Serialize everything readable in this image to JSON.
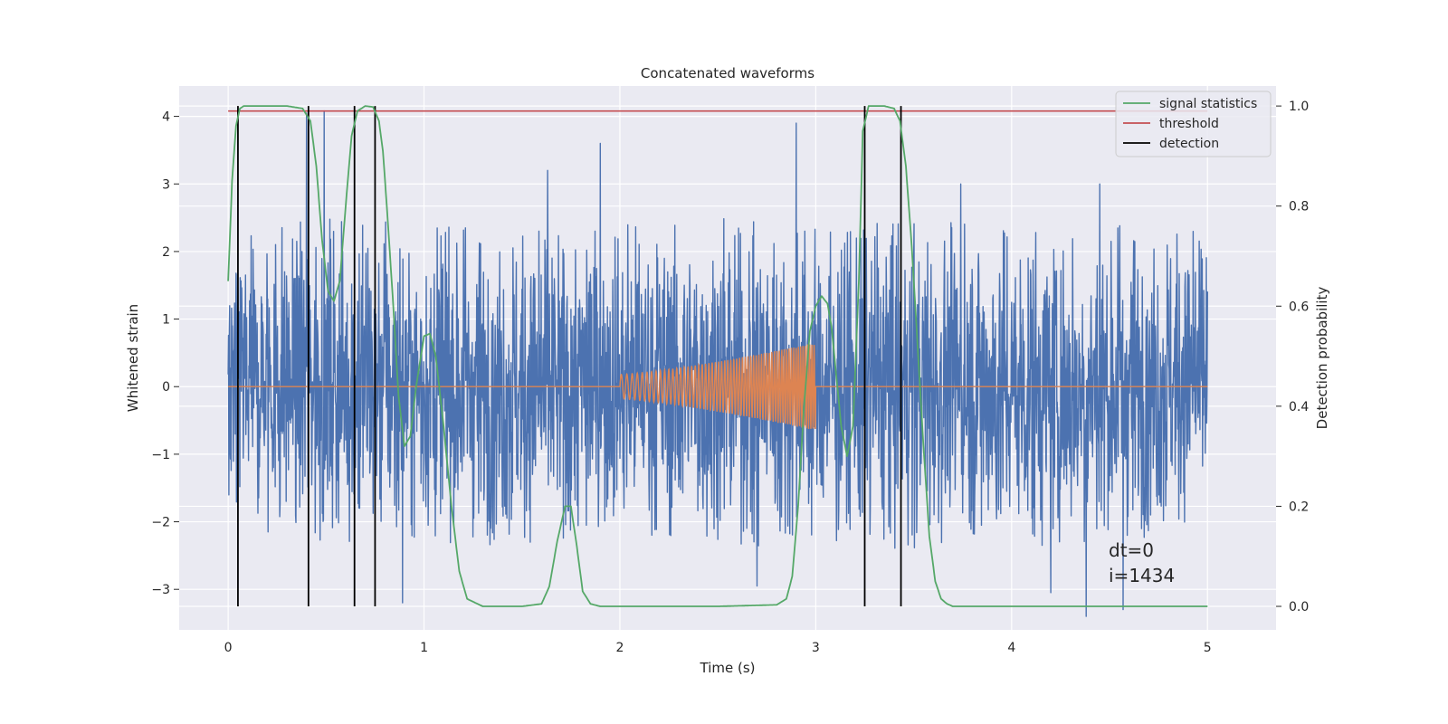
{
  "chart_data": {
    "type": "line",
    "title": "Concatenated waveforms",
    "xlabel": "Time (s)",
    "ylabel": "Whitened strain",
    "y2label": "Detection probability",
    "xlim": [
      -0.25,
      5.35
    ],
    "ylim": [
      -3.6,
      4.45
    ],
    "y2lim": [
      -0.047,
      1.04
    ],
    "xticks": [
      0,
      1,
      2,
      3,
      4,
      5
    ],
    "yticks": [
      -3,
      -2,
      -1,
      0,
      1,
      2,
      3,
      4
    ],
    "y2ticks": [
      0.0,
      0.2,
      0.4,
      0.6,
      0.8,
      1.0
    ],
    "y2ticklabels": [
      "0.0",
      "0.2",
      "0.4",
      "0.6",
      "0.8",
      "1.0"
    ],
    "grid": true,
    "legend_position": "top-right",
    "colors": {
      "strain": "#4c72b0",
      "template": "#dd8452",
      "statistics": "#55a868",
      "threshold": "#c44e52",
      "detection": "#000000",
      "background": "#eaeaf2",
      "grid": "#ffffff"
    },
    "series": [
      {
        "name": "",
        "role": "strain",
        "axis": "left",
        "x_range": [
          0,
          5
        ],
        "envelope_x": [
          0,
          0.5,
          1,
          1.5,
          2,
          2.5,
          3,
          3.5,
          4,
          4.5,
          5
        ],
        "envelope_high": [
          2.3,
          2.5,
          2.4,
          2.3,
          2.4,
          2.5,
          2.4,
          2.5,
          2.4,
          2.4,
          2.3
        ],
        "envelope_low": [
          -2.1,
          -2.3,
          -2.3,
          -2.4,
          -2.3,
          -2.4,
          -2.4,
          -2.4,
          -2.5,
          -2.4,
          -2.0
        ],
        "peaks": [
          {
            "x": 0.4,
            "y": 4.05
          },
          {
            "x": 0.49,
            "y": 4.08
          },
          {
            "x": 2.9,
            "y": 3.9
          },
          {
            "x": 1.9,
            "y": 3.6
          },
          {
            "x": 1.63,
            "y": 3.2
          },
          {
            "x": 3.74,
            "y": 3.0
          },
          {
            "x": 4.45,
            "y": 3.0
          },
          {
            "x": 0.89,
            "y": -3.2
          },
          {
            "x": 2.7,
            "y": -2.95
          },
          {
            "x": 4.38,
            "y": -3.4
          },
          {
            "x": 4.57,
            "y": -3.3
          },
          {
            "x": 4.2,
            "y": -3.05
          }
        ]
      },
      {
        "name": "",
        "role": "template",
        "axis": "left",
        "x_range": [
          0,
          5
        ],
        "chirp": {
          "start": 2.0,
          "end": 3.0,
          "amp_start": 0.18,
          "amp_end": 0.65,
          "cycles": 62
        }
      },
      {
        "name": "signal statistics",
        "axis": "right",
        "x": [
          0,
          0.02,
          0.04,
          0.06,
          0.08,
          0.12,
          0.2,
          0.3,
          0.38,
          0.42,
          0.45,
          0.48,
          0.51,
          0.54,
          0.57,
          0.6,
          0.63,
          0.66,
          0.7,
          0.74,
          0.77,
          0.79,
          0.81,
          0.84,
          0.87,
          0.9,
          0.93,
          0.96,
          1.0,
          1.03,
          1.06,
          1.1,
          1.14,
          1.18,
          1.22,
          1.3,
          1.5,
          1.6,
          1.64,
          1.68,
          1.72,
          1.75,
          1.78,
          1.81,
          1.85,
          1.9,
          2.2,
          2.5,
          2.8,
          2.85,
          2.88,
          2.91,
          2.94,
          2.97,
          3.0,
          3.03,
          3.06,
          3.08,
          3.1,
          3.13,
          3.16,
          3.19,
          3.22,
          3.24,
          3.27,
          3.3,
          3.35,
          3.4,
          3.43,
          3.46,
          3.49,
          3.52,
          3.55,
          3.58,
          3.61,
          3.64,
          3.67,
          3.7,
          3.8,
          4.0,
          4.5,
          5.0
        ],
        "y": [
          0.65,
          0.85,
          0.96,
          0.995,
          1.0,
          1.0,
          1.0,
          1.0,
          0.995,
          0.97,
          0.88,
          0.73,
          0.63,
          0.61,
          0.65,
          0.8,
          0.94,
          0.99,
          1.0,
          0.998,
          0.97,
          0.91,
          0.8,
          0.62,
          0.42,
          0.32,
          0.34,
          0.44,
          0.54,
          0.545,
          0.5,
          0.36,
          0.2,
          0.07,
          0.015,
          0.0,
          0.0,
          0.005,
          0.04,
          0.13,
          0.2,
          0.2,
          0.12,
          0.03,
          0.005,
          0.0,
          0.0,
          0.0,
          0.003,
          0.015,
          0.06,
          0.2,
          0.4,
          0.55,
          0.6,
          0.62,
          0.605,
          0.56,
          0.48,
          0.36,
          0.3,
          0.36,
          0.65,
          0.95,
          1.0,
          1.0,
          1.0,
          0.995,
          0.97,
          0.88,
          0.72,
          0.52,
          0.32,
          0.14,
          0.05,
          0.015,
          0.005,
          0.0,
          0.0,
          0.0,
          0.0,
          0.0
        ]
      },
      {
        "name": "threshold",
        "axis": "right",
        "x": [
          0,
          5
        ],
        "y": [
          0.99,
          0.99
        ]
      },
      {
        "name": "detection",
        "axis": "right",
        "x": [
          0.05,
          0.41,
          0.645,
          0.75,
          3.25,
          3.435
        ],
        "ymin": 0.0,
        "ymax": 1.0
      }
    ],
    "annotations": [
      "dt=0",
      "i=1434"
    ]
  }
}
